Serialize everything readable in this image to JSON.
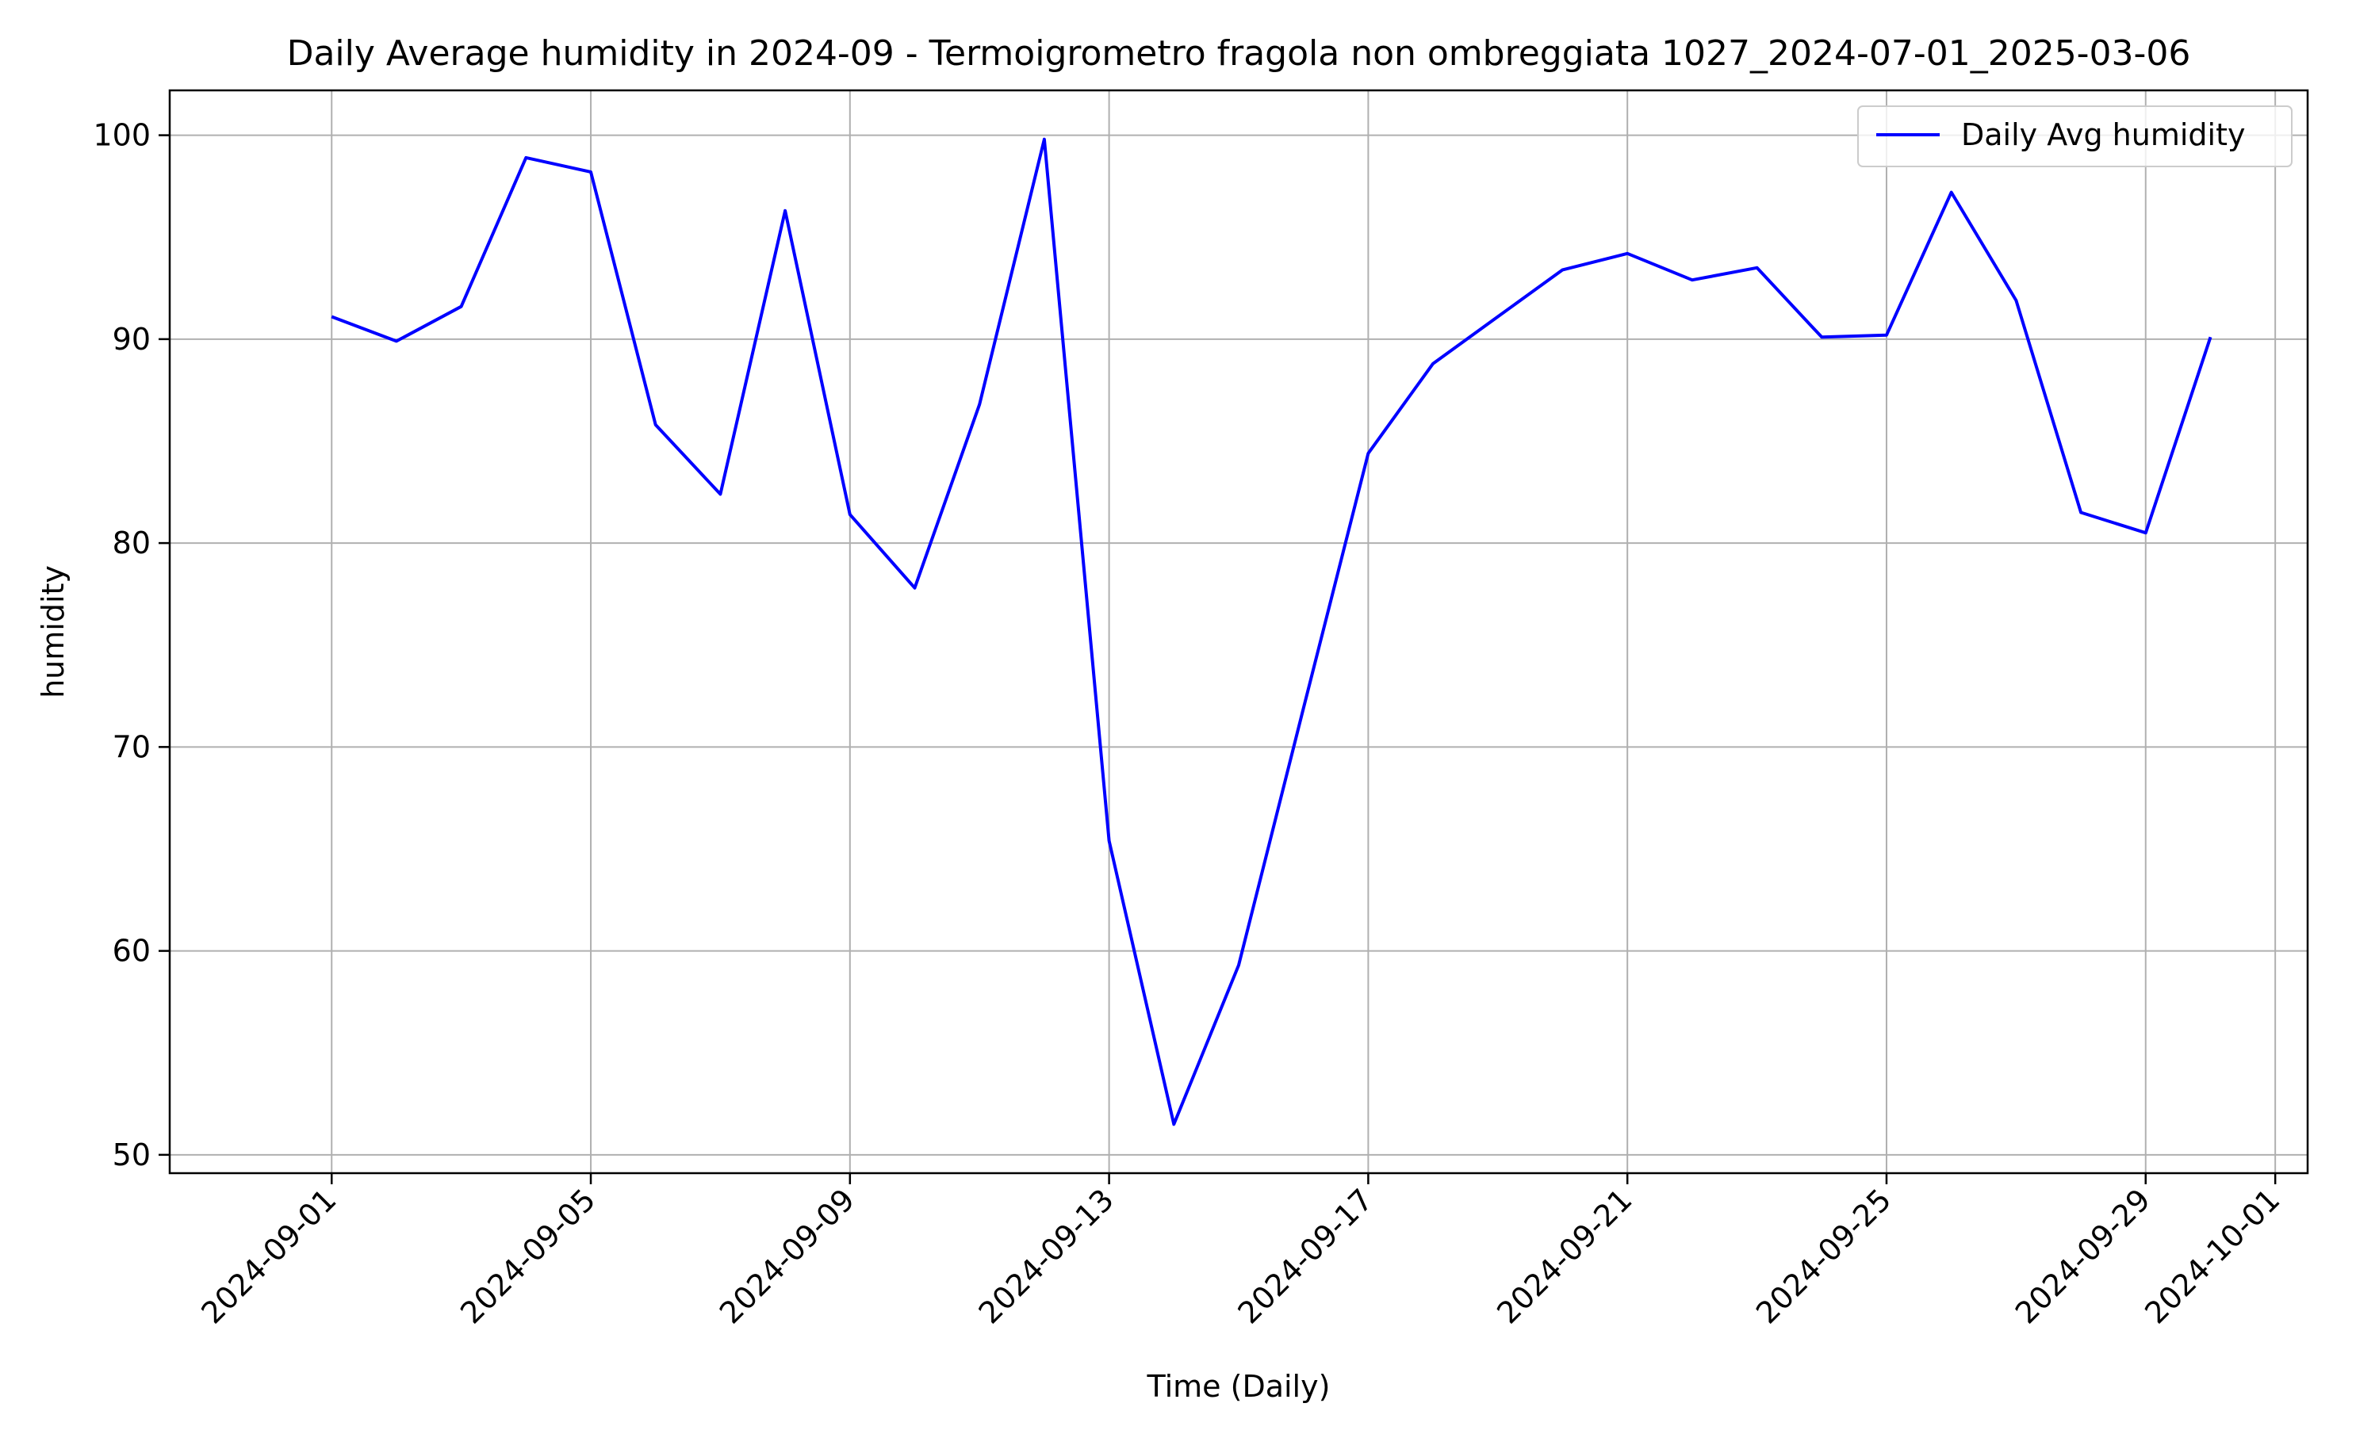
{
  "chart_data": {
    "type": "line",
    "title": "Daily Average humidity in 2024-09 - Termoigrometro fragola non ombreggiata 1027_2024-07-01_2025-03-06",
    "xlabel": "Time (Daily)",
    "ylabel": "humidity",
    "x": [
      "2024-09-01",
      "2024-09-02",
      "2024-09-03",
      "2024-09-04",
      "2024-09-05",
      "2024-09-06",
      "2024-09-07",
      "2024-09-08",
      "2024-09-09",
      "2024-09-10",
      "2024-09-11",
      "2024-09-12",
      "2024-09-13",
      "2024-09-14",
      "2024-09-15",
      "2024-09-16",
      "2024-09-17",
      "2024-09-18",
      "2024-09-19",
      "2024-09-20",
      "2024-09-21",
      "2024-09-22",
      "2024-09-23",
      "2024-09-24",
      "2024-09-25",
      "2024-09-26",
      "2024-09-27",
      "2024-09-28",
      "2024-09-29",
      "2024-09-30"
    ],
    "series": [
      {
        "name": "Daily Avg humidity",
        "color": "#0000ff",
        "values": [
          91.1,
          89.9,
          91.6,
          98.9,
          98.2,
          85.8,
          82.4,
          96.3,
          81.4,
          77.8,
          86.8,
          99.8,
          65.4,
          51.5,
          59.3,
          71.9,
          84.4,
          88.8,
          91.1,
          93.4,
          94.2,
          92.9,
          93.5,
          90.1,
          90.2,
          97.2,
          91.9,
          81.5,
          80.5,
          90.1
        ]
      }
    ],
    "xticks": [
      "2024-09-01",
      "2024-09-05",
      "2024-09-09",
      "2024-09-13",
      "2024-09-17",
      "2024-09-21",
      "2024-09-25",
      "2024-09-29",
      "2024-10-01"
    ],
    "yticks": [
      50,
      60,
      70,
      80,
      90,
      100
    ],
    "xlim": [
      "2024-08-29T12:00",
      "2024-10-01T12:00"
    ],
    "ylim": [
      49.1,
      102.2
    ],
    "grid": true,
    "legend_position": "top-right",
    "colors": {
      "grid": "#b0b0b0",
      "axis": "#000000",
      "legend_border": "#cccccc"
    }
  }
}
